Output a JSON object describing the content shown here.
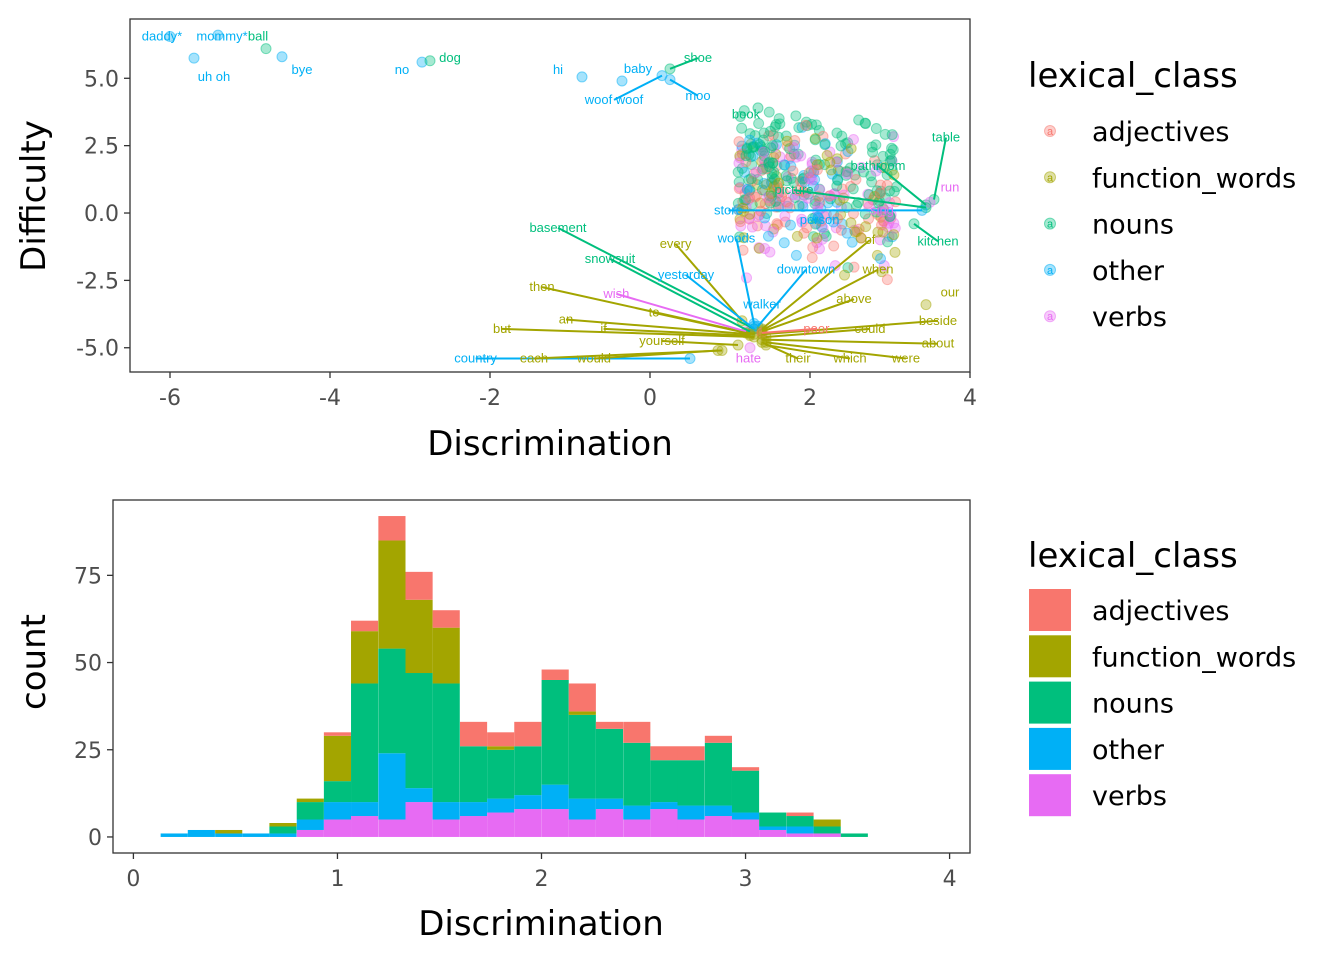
{
  "colors": {
    "adjectives": "#F8766D",
    "function_words": "#A3A500",
    "nouns": "#00BF7D",
    "other": "#00B0F6",
    "verbs": "#E76BF3"
  },
  "chart_data": [
    {
      "type": "scatter",
      "xlabel": "Discrimination",
      "ylabel": "Difficulty",
      "xlim": [
        -6.5,
        4.0
      ],
      "ylim": [
        -5.9,
        7.2
      ],
      "x_ticks": [
        -6,
        -4,
        -2,
        0,
        2,
        4
      ],
      "x_tick_labels": [
        "-6",
        "-4",
        "-2",
        "0",
        "2",
        "4"
      ],
      "y_ticks": [
        5.0,
        2.5,
        0.0,
        -2.5,
        -5.0
      ],
      "y_tick_labels": [
        "5.0",
        "2.5",
        "0.0",
        "-2.5",
        "-5.0"
      ],
      "grid": false,
      "legend": {
        "title": "lexical_class",
        "position": "right",
        "symbol": "a",
        "entries": [
          "adjectives",
          "function_words",
          "nouns",
          "other",
          "verbs"
        ]
      },
      "labeled_points": [
        {
          "label": "daddy*",
          "class": "other",
          "x": -6.0,
          "y": 6.55,
          "lx": -6.1,
          "ly": 6.55
        },
        {
          "label": "mommy*",
          "class": "other",
          "x": -5.4,
          "y": 6.6,
          "lx": -5.35,
          "ly": 6.55
        },
        {
          "label": "ball",
          "class": "nouns",
          "x": -4.8,
          "y": 6.1,
          "lx": -4.9,
          "ly": 6.55
        },
        {
          "label": "uh oh",
          "class": "other",
          "x": -5.7,
          "y": 5.75,
          "lx": -5.45,
          "ly": 5.05
        },
        {
          "label": "bye",
          "class": "other",
          "x": -4.6,
          "y": 5.8,
          "lx": -4.35,
          "ly": 5.3
        },
        {
          "label": "no",
          "class": "other",
          "x": -2.85,
          "y": 5.6,
          "lx": -3.1,
          "ly": 5.3
        },
        {
          "label": "dog",
          "class": "nouns",
          "x": -2.75,
          "y": 5.65,
          "lx": -2.5,
          "ly": 5.75
        },
        {
          "label": "hi",
          "class": "other",
          "x": -0.85,
          "y": 5.05,
          "lx": -1.15,
          "ly": 5.3
        },
        {
          "label": "baby",
          "class": "other",
          "x": -0.35,
          "y": 4.9,
          "lx": -0.15,
          "ly": 5.35
        },
        {
          "label": "shoe",
          "class": "nouns",
          "x": 0.25,
          "y": 5.35,
          "lx": 0.6,
          "ly": 5.75
        },
        {
          "label": "woof woof",
          "class": "other",
          "x": 0.15,
          "y": 5.1,
          "lx": -0.45,
          "ly": 4.2
        },
        {
          "label": "moo",
          "class": "other",
          "x": 0.25,
          "y": 4.95,
          "lx": 0.6,
          "ly": 4.35
        },
        {
          "label": "book",
          "class": "nouns",
          "x": 1.35,
          "y": 3.9,
          "lx": 1.2,
          "ly": 3.65
        },
        {
          "label": "table",
          "class": "nouns",
          "x": 3.55,
          "y": 0.5,
          "lx": 3.7,
          "ly": 2.8
        },
        {
          "label": "bathroom",
          "class": "nouns",
          "x": 3.45,
          "y": 0.3,
          "lx": 2.85,
          "ly": 1.75
        },
        {
          "label": "run",
          "class": "verbs",
          "x": 3.5,
          "y": 0.4,
          "lx": 3.75,
          "ly": 0.95
        },
        {
          "label": "picture",
          "class": "nouns",
          "x": 3.45,
          "y": 0.2,
          "lx": 1.8,
          "ly": 0.85
        },
        {
          "label": "store",
          "class": "other",
          "x": 3.4,
          "y": 0.1,
          "lx": 0.98,
          "ly": 0.1
        },
        {
          "label": "person",
          "class": "other",
          "x": 2.1,
          "y": -0.15,
          "lx": 2.12,
          "ly": -0.25
        },
        {
          "label": "sing",
          "class": "verbs",
          "x": 2.9,
          "y": 0.05,
          "lx": 2.9,
          "ly": 0.1
        },
        {
          "label": "kitchen",
          "class": "nouns",
          "x": 3.3,
          "y": -0.4,
          "lx": 3.6,
          "ly": -1.05
        },
        {
          "label": "basement",
          "class": "nouns",
          "x": 1.3,
          "y": -4.3,
          "lx": -1.15,
          "ly": -0.55
        },
        {
          "label": "every",
          "class": "function_words",
          "x": 1.15,
          "y": -4.0,
          "lx": 0.32,
          "ly": -1.15
        },
        {
          "label": "woods",
          "class": "other",
          "x": 1.3,
          "y": -4.1,
          "lx": 1.08,
          "ly": -0.95
        },
        {
          "label": "snowsuit",
          "class": "nouns",
          "x": 1.25,
          "y": -4.4,
          "lx": -0.5,
          "ly": -1.7
        },
        {
          "label": "yesterday",
          "class": "other",
          "x": 1.3,
          "y": -4.3,
          "lx": 0.45,
          "ly": -2.3
        },
        {
          "label": "downtown",
          "class": "other",
          "x": 1.35,
          "y": -4.2,
          "lx": 1.95,
          "ly": -2.1
        },
        {
          "label": "when",
          "class": "function_words",
          "x": 1.4,
          "y": -4.35,
          "lx": 2.85,
          "ly": -2.1
        },
        {
          "label": "of",
          "class": "function_words",
          "x": 1.4,
          "y": -4.3,
          "lx": 2.75,
          "ly": -1.0
        },
        {
          "label": "then",
          "class": "function_words",
          "x": 1.3,
          "y": -4.5,
          "lx": -1.35,
          "ly": -2.75
        },
        {
          "label": "wish",
          "class": "verbs",
          "x": 1.2,
          "y": -4.4,
          "lx": -0.42,
          "ly": -3.0
        },
        {
          "label": "walker",
          "class": "other",
          "x": 1.3,
          "y": -4.2,
          "lx": 1.4,
          "ly": -3.4
        },
        {
          "label": "above",
          "class": "function_words",
          "x": 1.4,
          "y": -4.4,
          "lx": 2.55,
          "ly": -3.2
        },
        {
          "label": "our",
          "class": "function_words",
          "x": 3.45,
          "y": -3.4,
          "lx": 3.75,
          "ly": -2.95
        },
        {
          "label": "an",
          "class": "function_words",
          "x": 1.25,
          "y": -4.5,
          "lx": -1.05,
          "ly": -3.95
        },
        {
          "label": "to",
          "class": "function_words",
          "x": 1.2,
          "y": -4.45,
          "lx": 0.05,
          "ly": -3.7
        },
        {
          "label": "beside",
          "class": "function_words",
          "x": 1.4,
          "y": -4.5,
          "lx": 3.6,
          "ly": -4.0
        },
        {
          "label": "but",
          "class": "function_words",
          "x": 1.3,
          "y": -4.6,
          "lx": -1.85,
          "ly": -4.3
        },
        {
          "label": "if",
          "class": "function_words",
          "x": 1.25,
          "y": -4.55,
          "lx": -0.58,
          "ly": -4.3
        },
        {
          "label": "poor",
          "class": "adjectives",
          "x": 1.4,
          "y": -4.45,
          "lx": 2.08,
          "ly": -4.3
        },
        {
          "label": "could",
          "class": "function_words",
          "x": 1.45,
          "y": -4.6,
          "lx": 2.75,
          "ly": -4.3
        },
        {
          "label": "yourself",
          "class": "function_words",
          "x": 1.1,
          "y": -4.9,
          "lx": 0.15,
          "ly": -4.75
        },
        {
          "label": "about",
          "class": "function_words",
          "x": 1.4,
          "y": -4.7,
          "lx": 3.6,
          "ly": -4.85
        },
        {
          "label": "country",
          "class": "other",
          "x": 0.5,
          "y": -5.4,
          "lx": -2.18,
          "ly": -5.4
        },
        {
          "label": "each",
          "class": "function_words",
          "x": 0.9,
          "y": -5.1,
          "lx": -1.45,
          "ly": -5.4
        },
        {
          "label": "would",
          "class": "function_words",
          "x": 0.85,
          "y": -5.1,
          "lx": -0.7,
          "ly": -5.4
        },
        {
          "label": "hate",
          "class": "verbs",
          "x": 1.25,
          "y": -5.0,
          "lx": 1.23,
          "ly": -5.4
        },
        {
          "label": "their",
          "class": "function_words",
          "x": 1.4,
          "y": -4.8,
          "lx": 1.85,
          "ly": -5.4
        },
        {
          "label": "which",
          "class": "function_words",
          "x": 1.45,
          "y": -4.9,
          "lx": 2.5,
          "ly": -5.4
        },
        {
          "label": "were",
          "class": "function_words",
          "x": 1.45,
          "y": -4.8,
          "lx": 3.2,
          "ly": -5.4
        }
      ]
    },
    {
      "type": "bar",
      "stacked": true,
      "xlabel": "Discrimination",
      "ylabel": "count",
      "xlim": [
        -0.1,
        4.1
      ],
      "ylim": [
        -4.6,
        96.6
      ],
      "x_ticks": [
        0,
        1,
        2,
        3,
        4
      ],
      "x_tick_labels": [
        "0",
        "1",
        "2",
        "3",
        "4"
      ],
      "y_ticks": [
        0,
        25,
        50,
        75
      ],
      "y_tick_labels": [
        "0",
        "25",
        "50",
        "75"
      ],
      "grid": false,
      "legend": {
        "title": "lexical_class",
        "position": "right",
        "entries": [
          "adjectives",
          "function_words",
          "nouns",
          "other",
          "verbs"
        ]
      },
      "bin_width": 0.133,
      "bin_centers": [
        0.2,
        0.333,
        0.467,
        0.6,
        0.733,
        0.867,
        1.0,
        1.133,
        1.267,
        1.4,
        1.533,
        1.667,
        1.8,
        1.933,
        2.067,
        2.2,
        2.333,
        2.467,
        2.6,
        2.733,
        2.867,
        3.0,
        3.133,
        3.267,
        3.4,
        3.533
      ],
      "series": [
        {
          "name": "verbs",
          "values": [
            0,
            0,
            0,
            0,
            0,
            2,
            5,
            6,
            5,
            10,
            5,
            6,
            7,
            8,
            8,
            5,
            8,
            5,
            8,
            5,
            6,
            5,
            2,
            1,
            1,
            0
          ]
        },
        {
          "name": "other",
          "values": [
            1,
            2,
            1,
            1,
            1,
            3,
            5,
            4,
            19,
            4,
            5,
            4,
            4,
            4,
            7,
            6,
            3,
            4,
            2,
            4,
            3,
            2,
            1,
            2,
            0,
            0
          ]
        },
        {
          "name": "nouns",
          "values": [
            0,
            0,
            0,
            0,
            2,
            5,
            6,
            34,
            30,
            33,
            34,
            16,
            14,
            14,
            30,
            24,
            20,
            18,
            12,
            13,
            18,
            12,
            4,
            3,
            2,
            1
          ]
        },
        {
          "name": "function_words",
          "values": [
            0,
            0,
            1,
            0,
            1,
            1,
            13,
            15,
            31,
            21,
            16,
            0,
            1,
            0,
            0,
            1,
            0,
            0,
            0,
            0,
            0,
            0,
            0,
            0,
            2,
            0
          ]
        },
        {
          "name": "adjectives",
          "values": [
            0,
            0,
            0,
            0,
            0,
            0,
            1,
            3,
            7,
            8,
            5,
            7,
            4,
            7,
            3,
            8,
            2,
            6,
            4,
            4,
            2,
            1,
            0,
            1,
            0,
            0
          ]
        }
      ]
    }
  ]
}
